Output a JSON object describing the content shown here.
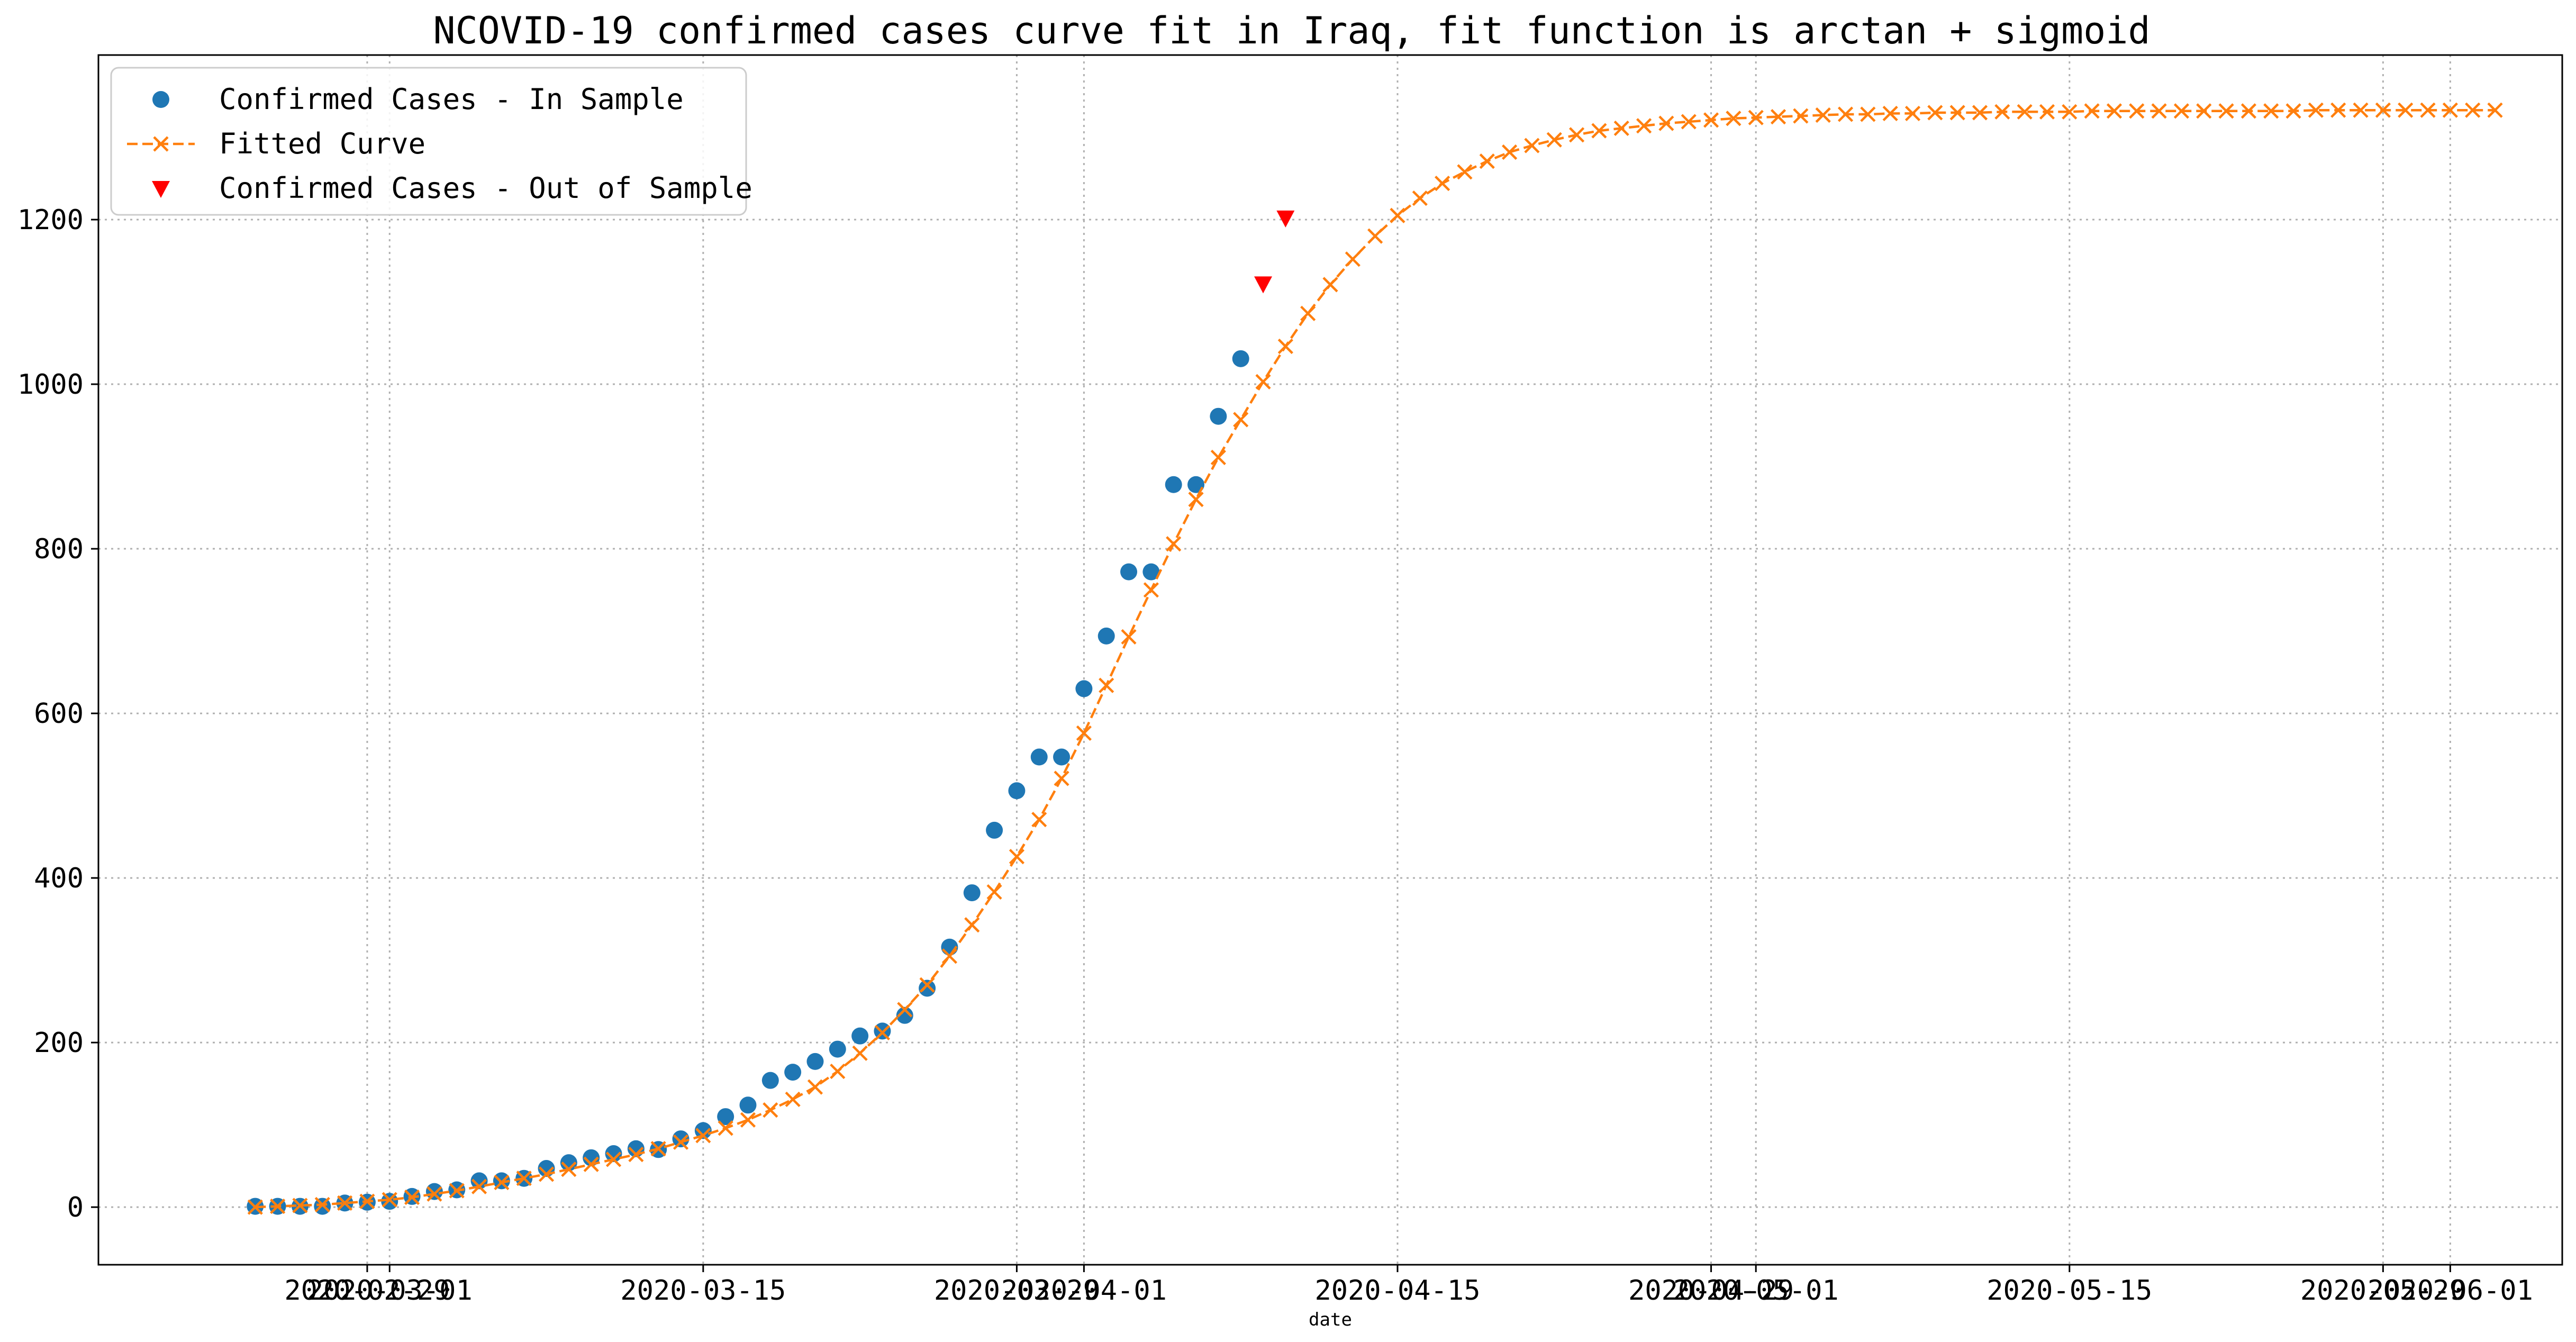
{
  "chart_data": {
    "type": "line",
    "title": "NCOVID-19 confirmed cases curve fit in Iraq, fit function is arctan + sigmoid",
    "xlabel": "date",
    "ylabel": "",
    "grid": true,
    "legend_position": "top-left",
    "colors": {
      "in_sample": "#1f77b4",
      "fitted": "#ff7f0e",
      "out_sample": "#ff0000"
    },
    "xlim": [
      "2020-02-17",
      "2020-06-06"
    ],
    "ylim": [
      -70,
      1400
    ],
    "x_ticks": [
      "2020-02-29",
      "2020-03-01",
      "2020-03-15",
      "2020-03-29",
      "2020-04-01",
      "2020-04-15",
      "2020-04-29",
      "2020-05-01",
      "2020-05-15",
      "2020-05-29",
      "2020-06-01"
    ],
    "y_ticks": [
      0,
      200,
      400,
      600,
      800,
      1000,
      1200
    ],
    "series": [
      {
        "name": "Confirmed Cases - In Sample",
        "marker": "circle",
        "line": "none",
        "start_date": "2020-02-24",
        "values": [
          1,
          1,
          1,
          1,
          5,
          6,
          7,
          13,
          19,
          21,
          32,
          32,
          35,
          47,
          54,
          60,
          65,
          71,
          70,
          83,
          93,
          110,
          124,
          154,
          164,
          177,
          192,
          208,
          214,
          233,
          266,
          316,
          382,
          458,
          506,
          547,
          547,
          630,
          694,
          772,
          772,
          878,
          878,
          961,
          1031
        ]
      },
      {
        "name": "Fitted Curve",
        "marker": "x",
        "line": "dashed",
        "start_date": "2020-02-24",
        "values": [
          0,
          1,
          2,
          3,
          5,
          7,
          9,
          12,
          16,
          20,
          25,
          30,
          35,
          40,
          46,
          52,
          58,
          64,
          71,
          79,
          87,
          96,
          106,
          118,
          131,
          146,
          165,
          187,
          212,
          240,
          270,
          305,
          343,
          383,
          426,
          471,
          521,
          576,
          634,
          693,
          750,
          806,
          860,
          911,
          957,
          1003,
          1046,
          1086,
          1121,
          1152,
          1180,
          1205,
          1226,
          1244,
          1258,
          1271,
          1282,
          1290,
          1297,
          1303,
          1308,
          1311,
          1314,
          1317,
          1319,
          1321,
          1323,
          1324,
          1325,
          1326,
          1327,
          1328,
          1328,
          1329,
          1329,
          1330,
          1330,
          1330,
          1331,
          1331,
          1331,
          1331,
          1332,
          1332,
          1332,
          1332,
          1332,
          1332,
          1332,
          1332,
          1332,
          1332,
          1333,
          1333,
          1333,
          1333,
          1333,
          1333,
          1333,
          1333,
          1333
        ]
      },
      {
        "name": "Confirmed Cases - Out of Sample",
        "marker": "triangle-down",
        "line": "none",
        "start_date": "2020-04-09",
        "values": [
          1122,
          1202
        ]
      }
    ]
  }
}
